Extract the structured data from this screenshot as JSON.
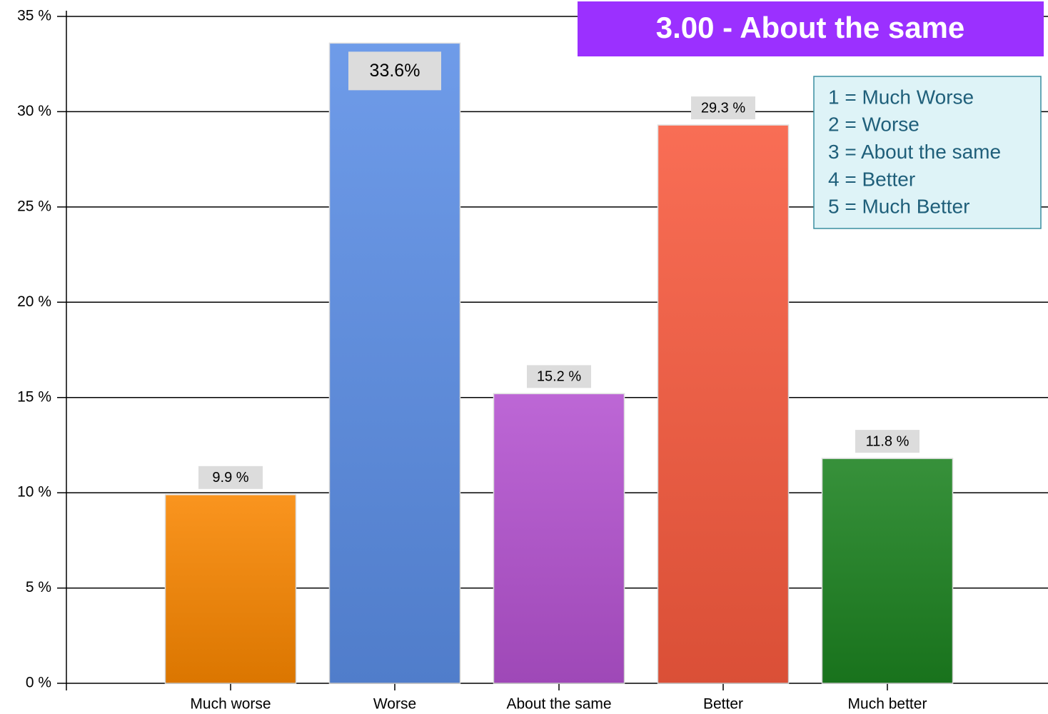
{
  "chart_data": {
    "type": "bar",
    "title": "3.00 - About the same",
    "annotations": [
      "1 = Much Worse",
      "2 = Worse",
      "3 = About the same",
      "4 = Better",
      "5 = Much Better"
    ],
    "categories": [
      "Much worse",
      "Worse",
      "About the same",
      "Better",
      "Much better"
    ],
    "values": [
      9.9,
      33.6,
      15.2,
      29.3,
      11.8
    ],
    "value_labels": [
      "9.9 %",
      "33.6%",
      "15.2 %",
      "29.3 %",
      "11.8 %"
    ],
    "colors": [
      "#f98600",
      "#5b8ee6",
      "#b452d0",
      "#f85a3e",
      "#1c8220"
    ],
    "ylim": [
      0,
      35
    ],
    "yticks": [
      {
        "value": 0,
        "label": "0 %"
      },
      {
        "value": 5,
        "label": "5 %"
      },
      {
        "value": 10,
        "label": "10 %"
      },
      {
        "value": 15,
        "label": "15 %"
      },
      {
        "value": 20,
        "label": "20 %"
      },
      {
        "value": 25,
        "label": "25 %"
      },
      {
        "value": 30,
        "label": "30 %"
      },
      {
        "value": 35,
        "label": "35 %"
      }
    ],
    "grid": true
  }
}
